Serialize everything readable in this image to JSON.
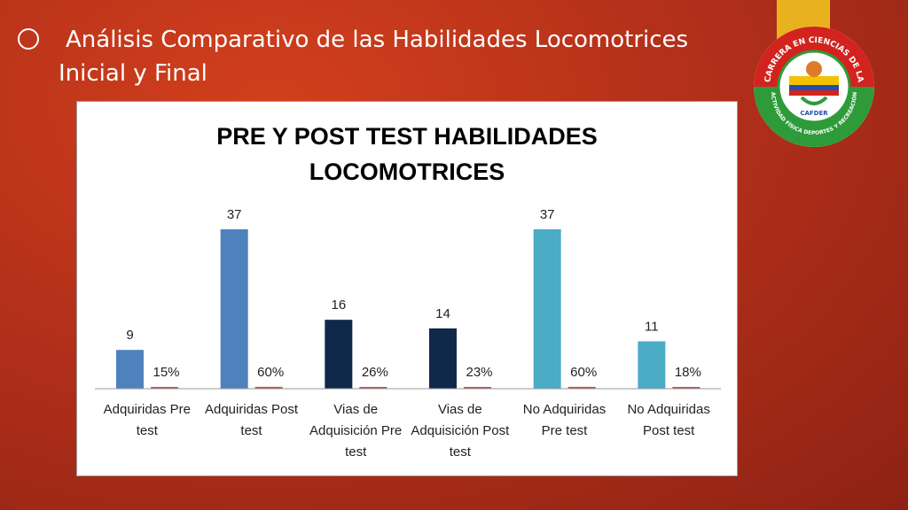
{
  "slide": {
    "title_line1": "Análisis Comparativo de las Habilidades Locomotrices",
    "title_line2": "Inicial y Final",
    "logo_text_top": "CARRERA EN CIENCIAS DE LA",
    "logo_text_bottom": "ACTIVIDAD FÍSICA DEPORTES Y RECREACIÓN",
    "logo_name": "CAFDER",
    "colors": {
      "background": "#c0381b",
      "ribbon": "#e8b21f"
    }
  },
  "chart_data": {
    "type": "bar",
    "title_lines": [
      "PRE Y POST TEST HABILIDADES",
      "LOCOMOTRICES"
    ],
    "groups": [
      {
        "label": [
          "Adquiridas Pre",
          "test"
        ],
        "value": 9,
        "value_label": "9",
        "percent": 15,
        "percent_label": "15%",
        "color": "#4f81bd"
      },
      {
        "label": [
          "Adquiridas Post",
          "test"
        ],
        "value": 37,
        "value_label": "37",
        "percent": 60,
        "percent_label": "60%",
        "color": "#4f81bd"
      },
      {
        "label": [
          "Vias de",
          "Adquisición Pre",
          "test"
        ],
        "value": 16,
        "value_label": "16",
        "percent": 26,
        "percent_label": "26%",
        "color": "#10284a"
      },
      {
        "label": [
          "Vias de",
          "Adquisición Post",
          "test"
        ],
        "value": 14,
        "value_label": "14",
        "percent": 23,
        "percent_label": "23%",
        "color": "#10284a"
      },
      {
        "label": [
          "No Adquiridas",
          "Pre test"
        ],
        "value": 37,
        "value_label": "37",
        "percent": 60,
        "percent_label": "60%",
        "color": "#4bacc6"
      },
      {
        "label": [
          "No Adquiridas",
          "Post test"
        ],
        "value": 11,
        "value_label": "11",
        "percent": 18,
        "percent_label": "18%",
        "color": "#4bacc6"
      }
    ],
    "percent_series_color": "#c0504d",
    "ylim": [
      0,
      40
    ],
    "grid": false,
    "legend": "none"
  }
}
